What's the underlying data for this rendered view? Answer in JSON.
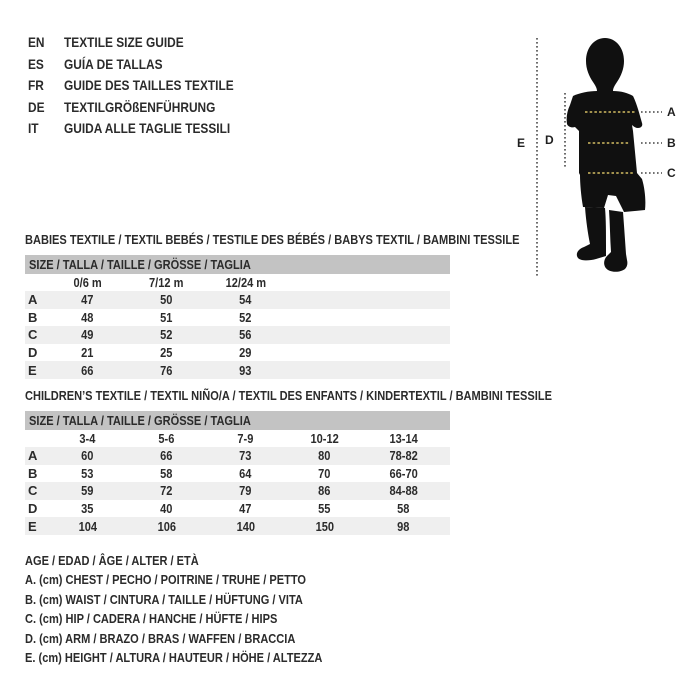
{
  "colors": {
    "text": "#2b2b2b",
    "silhouette": "#101010",
    "dash_yellow": "#d4bd62",
    "dash_black": "#1f1f1f",
    "table_header_bg": "#c3c3c3",
    "table_alt_row_bg": "#efefef"
  },
  "languages": [
    {
      "code": "EN",
      "title": "TEXTILE SIZE GUIDE"
    },
    {
      "code": "ES",
      "title": "GUÍA DE TALLAS"
    },
    {
      "code": "FR",
      "title": "GUIDE DES TAILLES TEXTILE"
    },
    {
      "code": "DE",
      "title": "TEXTILGRÖßENFÜHRUNG"
    },
    {
      "code": "IT",
      "title": "GUIDA ALLE TAGLIE TESSILI"
    }
  ],
  "figure": {
    "labels": [
      "A",
      "B",
      "C",
      "D",
      "E"
    ]
  },
  "tables": {
    "babies": {
      "title": "BABIES TEXTILE / TEXTIL BEBÉS / TESTILE DES BÉBÉS / BABYS TEXTIL / BAMBINI TESSILE",
      "size_header": "SIZE / TALLA / TAILLE / GRÖSSE / TAGLIA",
      "columns": [
        "0/6 m",
        "7/12 m",
        "12/24 m"
      ],
      "rows": [
        {
          "label": "A",
          "values": [
            "47",
            "50",
            "54"
          ]
        },
        {
          "label": "B",
          "values": [
            "48",
            "51",
            "52"
          ]
        },
        {
          "label": "C",
          "values": [
            "49",
            "52",
            "56"
          ]
        },
        {
          "label": "D",
          "values": [
            "21",
            "25",
            "29"
          ]
        },
        {
          "label": "E",
          "values": [
            "66",
            "76",
            "93"
          ]
        }
      ]
    },
    "children": {
      "title": "CHILDREN’S TEXTILE / TEXTIL NIÑO/A / TEXTIL DES ENFANTS / KINDERTEXTIL / BAMBINI TESSILE",
      "size_header": "SIZE / TALLA / TAILLE / GRÖSSE / TAGLIA",
      "columns": [
        "3-4",
        "5-6",
        "7-9",
        "10-12",
        "13-14"
      ],
      "rows": [
        {
          "label": "A",
          "values": [
            "60",
            "66",
            "73",
            "80",
            "78-82"
          ]
        },
        {
          "label": "B",
          "values": [
            "53",
            "58",
            "64",
            "70",
            "66-70"
          ]
        },
        {
          "label": "C",
          "values": [
            "59",
            "72",
            "79",
            "86",
            "84-88"
          ]
        },
        {
          "label": "D",
          "values": [
            "35",
            "40",
            "47",
            "55",
            "58"
          ]
        },
        {
          "label": "E",
          "values": [
            "104",
            "106",
            "140",
            "150",
            "98"
          ]
        }
      ]
    }
  },
  "legend": {
    "lines": [
      "AGE / EDAD / ÂGE / ALTER / ETÀ",
      "A. (cm) CHEST / PECHO / POITRINE / TRUHE / PETTO",
      "B. (cm) WAIST / CINTURA / TAILLE / HÜFTUNG / VITA",
      "C. (cm) HIP / CADERA / HANCHE / HÜFTE / HIPS",
      "D. (cm) ARM / BRAZO / BRAS / WAFFEN / BRACCIA",
      "E. (cm) HEIGHT / ALTURA / HAUTEUR / HÖHE / ALTEZZA"
    ]
  }
}
